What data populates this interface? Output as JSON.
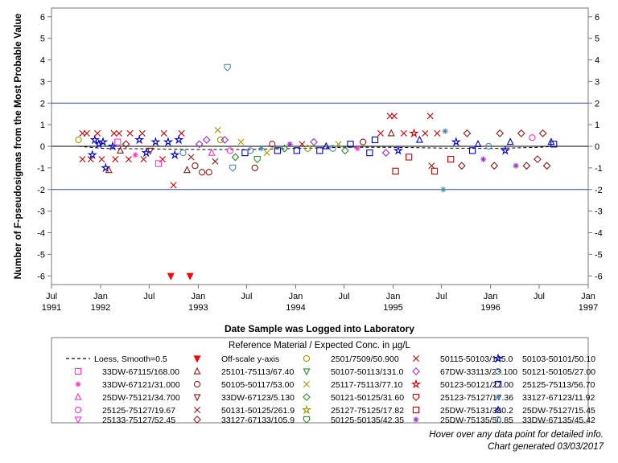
{
  "chart_data": {
    "type": "scatter",
    "title": "",
    "xlabel": "Date Sample was Logged into Laboratory",
    "ylabel": "Number of F-pseudosigmas from the Most Probable Value",
    "xlim": [
      "1991-07-01",
      "1997-01-01"
    ],
    "ylim": [
      -6.4,
      6.4
    ],
    "y_ticks": [
      -6,
      -5,
      -4,
      -3,
      -2,
      -1,
      0,
      1,
      2,
      3,
      4,
      5,
      6
    ],
    "y_tick_labels": [
      "-6",
      "-5",
      "-4",
      "-3",
      "-2",
      "-1",
      "0",
      "1",
      "2",
      "3",
      "4",
      "5",
      "6"
    ],
    "x_ticks": [
      "1991-07-01",
      "1992-01-01",
      "1992-07-01",
      "1993-01-01",
      "1993-07-01",
      "1994-01-01",
      "1994-07-01",
      "1995-01-01",
      "1995-07-01",
      "1996-01-01",
      "1996-07-01",
      "1997-01-01"
    ],
    "x_tick_labels": [
      {
        "month": "Jul",
        "year": "1991"
      },
      {
        "month": "Jan",
        "year": "1992"
      },
      {
        "month": "Jul",
        "year": ""
      },
      {
        "month": "Jan",
        "year": "1993"
      },
      {
        "month": "Jul",
        "year": ""
      },
      {
        "month": "Jan",
        "year": "1994"
      },
      {
        "month": "Jul",
        "year": ""
      },
      {
        "month": "Jan",
        "year": "1995"
      },
      {
        "month": "Jul",
        "year": ""
      },
      {
        "month": "Jan",
        "year": "1996"
      },
      {
        "month": "Jul",
        "year": ""
      },
      {
        "month": "Jan",
        "year": "1997"
      }
    ],
    "reference_lines": [
      2,
      0,
      -2
    ],
    "legend_title": "Reference Material / Expected Conc. in µg/L",
    "legend_placement": "bottom",
    "legend_entries": [
      {
        "label": "Loess, Smooth=0.5",
        "marker": "dashline",
        "color": "#000000"
      },
      {
        "label": "Off-scale y-axis",
        "marker": "tri-down-filled",
        "color": "#ff0000"
      },
      {
        "label": "2501/7509/50.900",
        "marker": "circle",
        "color": "#9a9a00"
      },
      {
        "label": "50115-50103/145.0",
        "marker": "x",
        "color": "#cc0000"
      },
      {
        "label": "50103-50101/50.10",
        "marker": "star",
        "color": "#0000cc"
      },
      {
        "label": "33DW-67115/168.00",
        "marker": "square",
        "color": "#ff33cc"
      },
      {
        "label": "25101-75113/67.40",
        "marker": "triangle",
        "color": "#8b1a1a"
      },
      {
        "label": "50107-50113/131.0",
        "marker": "tri-down",
        "color": "#2e8b2e"
      },
      {
        "label": "67DW-33113/23.100",
        "marker": "diamond",
        "color": "#9933cc"
      },
      {
        "label": "50121-50105/27.00",
        "marker": "circle",
        "color": "#4d88aa"
      },
      {
        "label": "33DW-67121/31.000",
        "marker": "asterisk",
        "color": "#ff33cc"
      },
      {
        "label": "50105-50117/53.00",
        "marker": "circle",
        "color": "#8b1a1a"
      },
      {
        "label": "25117-75113/77.10",
        "marker": "x",
        "color": "#9a9a00"
      },
      {
        "label": "50123-50121/27.00",
        "marker": "star",
        "color": "#cc0000"
      },
      {
        "label": "25125-75113/56.70",
        "marker": "square",
        "color": "#0000cc"
      },
      {
        "label": "25DW-75121/34.700",
        "marker": "triangle",
        "color": "#ff33cc"
      },
      {
        "label": "33DW-67123/5.130",
        "marker": "tri-down",
        "color": "#8b1a1a"
      },
      {
        "label": "50121-50125/31.60",
        "marker": "diamond",
        "color": "#2e8b2e"
      },
      {
        "label": "25123-75127/17.36",
        "marker": "shield",
        "color": "#cc0000"
      },
      {
        "label": "33127-67123/11.92",
        "marker": "asterisk",
        "color": "#4d88aa"
      },
      {
        "label": "25125-75127/19.67",
        "marker": "circle",
        "color": "#ff33cc"
      },
      {
        "label": "50131-50125/261.9",
        "marker": "x",
        "color": "#8b1a1a"
      },
      {
        "label": "25127-75125/17.82",
        "marker": "star",
        "color": "#9a9a00"
      },
      {
        "label": "25DW-75131/380.2",
        "marker": "square",
        "color": "#cc0000"
      },
      {
        "label": "25DW-75127/15.45",
        "marker": "triangle",
        "color": "#0000cc"
      },
      {
        "label": "25133-75127/52.45",
        "marker": "tri-down",
        "color": "#ff33cc"
      },
      {
        "label": "33127-67133/105.9",
        "marker": "diamond",
        "color": "#8b1a1a"
      },
      {
        "label": "50125-50135/42.35",
        "marker": "shield",
        "color": "#2e8b2e"
      },
      {
        "label": "25DW-75135/50.85",
        "marker": "asterisk",
        "color": "#9933cc"
      },
      {
        "label": "33DW-67135/45.42",
        "marker": "circle",
        "color": "#4d88aa"
      }
    ],
    "loess": [
      {
        "x": "1991-10-10",
        "y": 0.0
      },
      {
        "x": "1992-01-15",
        "y": -0.1
      },
      {
        "x": "1992-07-01",
        "y": -0.12
      },
      {
        "x": "1993-01-01",
        "y": -0.15
      },
      {
        "x": "1993-07-01",
        "y": -0.15
      },
      {
        "x": "1994-01-01",
        "y": -0.1
      },
      {
        "x": "1994-07-01",
        "y": -0.05
      },
      {
        "x": "1995-01-01",
        "y": -0.05
      },
      {
        "x": "1995-07-01",
        "y": -0.08
      },
      {
        "x": "1996-01-01",
        "y": -0.1
      },
      {
        "x": "1996-07-01",
        "y": -0.05
      },
      {
        "x": "1996-08-25",
        "y": 0.0
      }
    ],
    "off_scale_points": [
      {
        "x": "1992-09-20",
        "y": -6
      },
      {
        "x": "1992-12-01",
        "y": -6
      }
    ],
    "highlight_points": [
      {
        "x": "1993-04-20",
        "y": 3.65,
        "marker": "shield",
        "color": "#4d88aa"
      },
      {
        "x": "1992-09-30",
        "y": -1.8,
        "marker": "x",
        "color": "#cc0000"
      },
      {
        "x": "1995-07-08",
        "y": -2.0,
        "marker": "asterisk",
        "color": "#4d88aa"
      },
      {
        "x": "1994-12-20",
        "y": 1.4,
        "marker": "x",
        "color": "#cc0000"
      },
      {
        "x": "1995-01-05",
        "y": 1.4,
        "marker": "x",
        "color": "#cc0000"
      },
      {
        "x": "1995-05-20",
        "y": 1.4,
        "marker": "x",
        "color": "#cc0000"
      },
      {
        "x": "1993-03-15",
        "y": 0.75,
        "marker": "x",
        "color": "#9a9a00"
      },
      {
        "x": "1995-01-10",
        "y": -1.15,
        "marker": "square",
        "color": "#cc0000"
      },
      {
        "x": "1995-06-05",
        "y": -1.15,
        "marker": "square",
        "color": "#cc0000"
      },
      {
        "x": "1993-05-10",
        "y": -1.0,
        "marker": "shield",
        "color": "#4d88aa"
      },
      {
        "x": "1992-01-20",
        "y": -1.0,
        "marker": "star",
        "color": "#0000cc"
      },
      {
        "x": "1992-02-01",
        "y": -1.1,
        "marker": "triangle",
        "color": "#8b1a1a"
      },
      {
        "x": "1992-11-20",
        "y": -1.1,
        "marker": "triangle",
        "color": "#8b1a1a"
      },
      {
        "x": "1993-01-15",
        "y": -1.2,
        "marker": "circle",
        "color": "#8b1a1a"
      },
      {
        "x": "1993-02-10",
        "y": -1.2,
        "marker": "circle",
        "color": "#8b1a1a"
      },
      {
        "x": "1993-08-01",
        "y": -1.0,
        "marker": "circle",
        "color": "#8b1a1a"
      }
    ],
    "cluster_points": [
      {
        "x": "1991-10-25",
        "y": 0.6,
        "marker": "x",
        "color": "#cc0000"
      },
      {
        "x": "1991-11-10",
        "y": 0.6,
        "marker": "x",
        "color": "#cc0000"
      },
      {
        "x": "1991-12-20",
        "y": 0.6,
        "marker": "x",
        "color": "#cc0000"
      },
      {
        "x": "1992-02-20",
        "y": 0.6,
        "marker": "x",
        "color": "#cc0000"
      },
      {
        "x": "1992-03-10",
        "y": 0.6,
        "marker": "x",
        "color": "#cc0000"
      },
      {
        "x": "1992-04-20",
        "y": 0.6,
        "marker": "x",
        "color": "#cc0000"
      },
      {
        "x": "1992-06-05",
        "y": 0.6,
        "marker": "x",
        "color": "#cc0000"
      },
      {
        "x": "1992-08-25",
        "y": 0.6,
        "marker": "x",
        "color": "#cc0000"
      },
      {
        "x": "1992-10-30",
        "y": 0.6,
        "marker": "x",
        "color": "#cc0000"
      },
      {
        "x": "1991-10-25",
        "y": -0.6,
        "marker": "x",
        "color": "#cc0000"
      },
      {
        "x": "1991-11-25",
        "y": -0.6,
        "marker": "x",
        "color": "#cc0000"
      },
      {
        "x": "1992-01-05",
        "y": -0.6,
        "marker": "x",
        "color": "#cc0000"
      },
      {
        "x": "1992-02-25",
        "y": -0.6,
        "marker": "x",
        "color": "#cc0000"
      },
      {
        "x": "1992-04-15",
        "y": -0.6,
        "marker": "x",
        "color": "#cc0000"
      },
      {
        "x": "1992-06-10",
        "y": -0.6,
        "marker": "x",
        "color": "#cc0000"
      },
      {
        "x": "1992-08-20",
        "y": -0.6,
        "marker": "x",
        "color": "#cc0000"
      },
      {
        "x": "1991-12-10",
        "y": 0.3,
        "marker": "star",
        "color": "#0000cc"
      },
      {
        "x": "1991-12-25",
        "y": 0.1,
        "marker": "star",
        "color": "#0000cc"
      },
      {
        "x": "1992-01-10",
        "y": 0.2,
        "marker": "star",
        "color": "#0000cc"
      },
      {
        "x": "1992-02-15",
        "y": 0.0,
        "marker": "star",
        "color": "#0000cc"
      },
      {
        "x": "1992-05-25",
        "y": 0.3,
        "marker": "star",
        "color": "#0000cc"
      },
      {
        "x": "1992-06-20",
        "y": -0.3,
        "marker": "star",
        "color": "#0000cc"
      },
      {
        "x": "1992-07-25",
        "y": 0.2,
        "marker": "star",
        "color": "#0000cc"
      },
      {
        "x": "1992-10-20",
        "y": 0.3,
        "marker": "star",
        "color": "#0000cc"
      },
      {
        "x": "1991-10-10",
        "y": 0.3,
        "marker": "circle",
        "color": "#9a9a00"
      },
      {
        "x": "1991-12-01",
        "y": -0.4,
        "marker": "star",
        "color": "#0000cc"
      },
      {
        "x": "1992-03-05",
        "y": 0.2,
        "marker": "square",
        "color": "#ff33cc"
      },
      {
        "x": "1992-03-15",
        "y": -0.2,
        "marker": "triangle",
        "color": "#8b1a1a"
      },
      {
        "x": "1992-04-05",
        "y": 0.1,
        "marker": "diamond",
        "color": "#8b1a1a"
      },
      {
        "x": "1992-05-10",
        "y": -0.4,
        "marker": "asterisk",
        "color": "#ff33cc"
      },
      {
        "x": "1992-07-05",
        "y": -0.2,
        "marker": "tri-down",
        "color": "#8b1a1a"
      },
      {
        "x": "1992-08-05",
        "y": -0.8,
        "marker": "square",
        "color": "#ff33cc"
      },
      {
        "x": "1992-09-10",
        "y": 0.2,
        "marker": "star",
        "color": "#0000cc"
      },
      {
        "x": "1992-10-05",
        "y": -0.4,
        "marker": "star",
        "color": "#0000cc"
      },
      {
        "x": "1992-11-05",
        "y": -0.3,
        "marker": "circle",
        "color": "#4d88aa"
      },
      {
        "x": "1992-12-05",
        "y": -0.5,
        "marker": "x",
        "color": "#8b1a1a"
      },
      {
        "x": "1992-12-20",
        "y": -0.9,
        "marker": "circle",
        "color": "#8b1a1a"
      },
      {
        "x": "1993-01-05",
        "y": 0.1,
        "marker": "diamond",
        "color": "#9933cc"
      },
      {
        "x": "1993-02-01",
        "y": 0.3,
        "marker": "diamond",
        "color": "#9933cc"
      },
      {
        "x": "1993-02-20",
        "y": -0.3,
        "marker": "triangle",
        "color": "#ff33cc"
      },
      {
        "x": "1993-03-05",
        "y": -0.7,
        "marker": "x",
        "color": "#8b1a1a"
      },
      {
        "x": "1993-03-25",
        "y": 0.3,
        "marker": "circle",
        "color": "#9a9a00"
      },
      {
        "x": "1993-04-10",
        "y": 0.3,
        "marker": "diamond",
        "color": "#9933cc"
      },
      {
        "x": "1993-04-30",
        "y": -0.2,
        "marker": "circle",
        "color": "#ff33cc"
      },
      {
        "x": "1993-05-20",
        "y": -0.5,
        "marker": "diamond",
        "color": "#2e8b2e"
      },
      {
        "x": "1993-06-10",
        "y": 0.2,
        "marker": "x",
        "color": "#9a9a00"
      },
      {
        "x": "1993-06-25",
        "y": -0.3,
        "marker": "square",
        "color": "#0000cc"
      },
      {
        "x": "1993-07-15",
        "y": -0.2,
        "marker": "circle",
        "color": "#4d88aa"
      },
      {
        "x": "1993-08-10",
        "y": -0.6,
        "marker": "shield",
        "color": "#2e8b2e"
      },
      {
        "x": "1993-08-25",
        "y": -0.1,
        "marker": "asterisk",
        "color": "#4d88aa"
      },
      {
        "x": "1993-09-15",
        "y": -0.3,
        "marker": "x",
        "color": "#9a9a00"
      },
      {
        "x": "1993-10-05",
        "y": 0.1,
        "marker": "circle",
        "color": "#8b1a1a"
      },
      {
        "x": "1993-10-25",
        "y": -0.2,
        "marker": "square",
        "color": "#0000cc"
      },
      {
        "x": "1993-11-20",
        "y": -0.1,
        "marker": "diamond",
        "color": "#2e8b2e"
      },
      {
        "x": "1993-12-10",
        "y": 0.1,
        "marker": "asterisk",
        "color": "#9933cc"
      },
      {
        "x": "1994-01-05",
        "y": -0.2,
        "marker": "square",
        "color": "#0000cc"
      },
      {
        "x": "1994-01-25",
        "y": 0.1,
        "marker": "x",
        "color": "#8b1a1a"
      },
      {
        "x": "1994-02-15",
        "y": -0.1,
        "marker": "circle",
        "color": "#9a9a00"
      },
      {
        "x": "1994-03-10",
        "y": 0.2,
        "marker": "diamond",
        "color": "#9933cc"
      },
      {
        "x": "1994-04-01",
        "y": -0.2,
        "marker": "square",
        "color": "#0000cc"
      },
      {
        "x": "1994-04-25",
        "y": 0.0,
        "marker": "triangle",
        "color": "#0000cc"
      },
      {
        "x": "1994-05-20",
        "y": -0.1,
        "marker": "circle",
        "color": "#4d88aa"
      },
      {
        "x": "1994-06-10",
        "y": 0.1,
        "marker": "x",
        "color": "#9a9a00"
      },
      {
        "x": "1994-07-05",
        "y": -0.2,
        "marker": "diamond",
        "color": "#2e8b2e"
      },
      {
        "x": "1994-07-25",
        "y": 0.1,
        "marker": "square",
        "color": "#0000cc"
      },
      {
        "x": "1994-08-20",
        "y": -0.1,
        "marker": "asterisk",
        "color": "#ff33cc"
      },
      {
        "x": "1994-09-10",
        "y": 0.2,
        "marker": "circle",
        "color": "#8b1a1a"
      },
      {
        "x": "1994-10-05",
        "y": -0.3,
        "marker": "square",
        "color": "#0000cc"
      },
      {
        "x": "1994-10-25",
        "y": 0.3,
        "marker": "square",
        "color": "#0000cc"
      },
      {
        "x": "1994-11-15",
        "y": 0.6,
        "marker": "x",
        "color": "#cc0000"
      },
      {
        "x": "1994-12-05",
        "y": -0.3,
        "marker": "diamond",
        "color": "#9933cc"
      },
      {
        "x": "1994-12-25",
        "y": 0.6,
        "marker": "triangle",
        "color": "#8b1a1a"
      },
      {
        "x": "1995-01-20",
        "y": -0.2,
        "marker": "star",
        "color": "#0000cc"
      },
      {
        "x": "1995-02-10",
        "y": 0.6,
        "marker": "x",
        "color": "#cc0000"
      },
      {
        "x": "1995-03-01",
        "y": -0.5,
        "marker": "square",
        "color": "#cc0000"
      },
      {
        "x": "1995-03-20",
        "y": 0.6,
        "marker": "star",
        "color": "#cc0000"
      },
      {
        "x": "1995-04-10",
        "y": 0.3,
        "marker": "triangle",
        "color": "#0000cc"
      },
      {
        "x": "1995-05-01",
        "y": 0.6,
        "marker": "x",
        "color": "#cc0000"
      },
      {
        "x": "1995-05-25",
        "y": -0.9,
        "marker": "x",
        "color": "#8b1a1a"
      },
      {
        "x": "1995-06-15",
        "y": 0.6,
        "marker": "x",
        "color": "#cc0000"
      },
      {
        "x": "1995-07-15",
        "y": 0.7,
        "marker": "asterisk",
        "color": "#4d88aa"
      },
      {
        "x": "1995-08-05",
        "y": -0.6,
        "marker": "square",
        "color": "#cc0000"
      },
      {
        "x": "1995-08-25",
        "y": 0.2,
        "marker": "star",
        "color": "#0000cc"
      },
      {
        "x": "1995-09-15",
        "y": -0.9,
        "marker": "diamond",
        "color": "#8b1a1a"
      },
      {
        "x": "1995-10-05",
        "y": 0.6,
        "marker": "diamond",
        "color": "#8b1a1a"
      },
      {
        "x": "1995-10-25",
        "y": -0.2,
        "marker": "square",
        "color": "#0000cc"
      },
      {
        "x": "1995-11-15",
        "y": 0.1,
        "marker": "triangle",
        "color": "#0000cc"
      },
      {
        "x": "1995-12-05",
        "y": -0.6,
        "marker": "asterisk",
        "color": "#9933cc"
      },
      {
        "x": "1995-12-25",
        "y": 0.0,
        "marker": "circle",
        "color": "#4d88aa"
      },
      {
        "x": "1996-01-15",
        "y": -0.9,
        "marker": "diamond",
        "color": "#8b1a1a"
      },
      {
        "x": "1996-02-05",
        "y": 0.6,
        "marker": "diamond",
        "color": "#8b1a1a"
      },
      {
        "x": "1996-02-25",
        "y": -0.2,
        "marker": "star",
        "color": "#0000cc"
      },
      {
        "x": "1996-03-15",
        "y": 0.2,
        "marker": "triangle",
        "color": "#0000cc"
      },
      {
        "x": "1996-04-05",
        "y": -0.9,
        "marker": "asterisk",
        "color": "#9933cc"
      },
      {
        "x": "1996-04-25",
        "y": 0.6,
        "marker": "diamond",
        "color": "#8b1a1a"
      },
      {
        "x": "1996-05-15",
        "y": -0.9,
        "marker": "diamond",
        "color": "#8b1a1a"
      },
      {
        "x": "1996-06-05",
        "y": 0.4,
        "marker": "circle",
        "color": "#ff33cc"
      },
      {
        "x": "1996-06-25",
        "y": -0.6,
        "marker": "diamond",
        "color": "#8b1a1a"
      },
      {
        "x": "1996-07-15",
        "y": 0.6,
        "marker": "diamond",
        "color": "#8b1a1a"
      },
      {
        "x": "1996-07-30",
        "y": -0.9,
        "marker": "diamond",
        "color": "#8b1a1a"
      },
      {
        "x": "1996-08-15",
        "y": 0.2,
        "marker": "triangle",
        "color": "#0000cc"
      },
      {
        "x": "1996-08-25",
        "y": 0.1,
        "marker": "square",
        "color": "#0000cc"
      }
    ]
  },
  "footer": {
    "line1": "Hover over any data point for detailed info.",
    "line2": "Chart generated 03/03/2017"
  }
}
